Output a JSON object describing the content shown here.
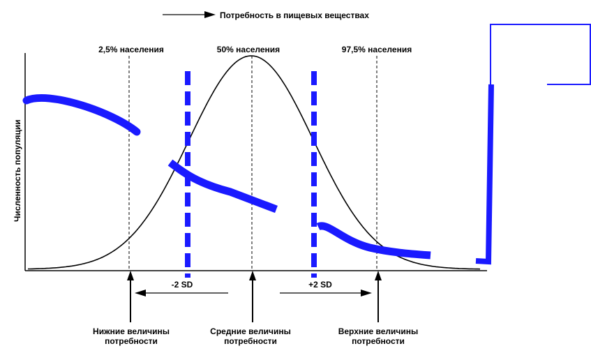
{
  "title": "Потребность в пищевых веществах",
  "y_axis_label": "Численность популяции",
  "percentile_labels": {
    "low": "2,5% населения",
    "mid": "50% населения",
    "high": "97,5% населения"
  },
  "sd_labels": {
    "minus": "-2 SD",
    "plus": "+2 SD"
  },
  "bottom_labels": {
    "lower": [
      "Нижние величины",
      "потребности"
    ],
    "average": [
      "Средние величины",
      "потребности"
    ],
    "upper": [
      "Верхние величины",
      "потребности"
    ]
  },
  "colors": {
    "ink": "#000000",
    "accent": "#1a1aff"
  }
}
